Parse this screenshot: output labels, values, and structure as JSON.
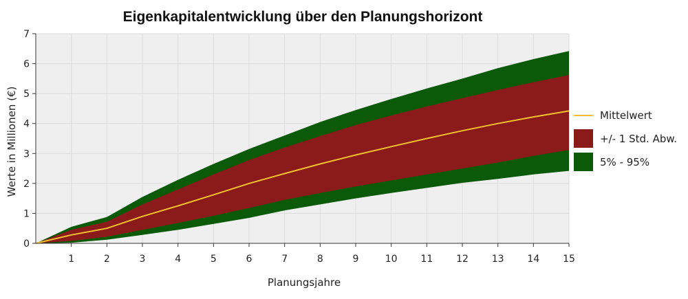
{
  "chart_data": {
    "type": "area",
    "title": "Eigenkapitalentwicklung über den Planungshorizont",
    "xlabel": "Planungsjahre",
    "ylabel": "Werte in Millionen (€)",
    "x": [
      0,
      1,
      2,
      3,
      4,
      5,
      6,
      7,
      8,
      9,
      10,
      11,
      12,
      13,
      14,
      15
    ],
    "xlim": [
      0,
      15
    ],
    "ylim": [
      0,
      7
    ],
    "x_ticks": [
      "1",
      "2",
      "3",
      "4",
      "5",
      "6",
      "7",
      "8",
      "9",
      "10",
      "11",
      "12",
      "13",
      "14",
      "15"
    ],
    "y_ticks": [
      "0",
      "1",
      "2",
      "3",
      "4",
      "5",
      "6",
      "7"
    ],
    "grid": true,
    "legend_position": "right",
    "series": [
      {
        "name": "Mittelwert",
        "kind": "line",
        "color": "#f2c12e",
        "values": [
          0,
          0.28,
          0.5,
          0.9,
          1.25,
          1.62,
          2.0,
          2.33,
          2.65,
          2.95,
          3.23,
          3.5,
          3.76,
          4.0,
          4.22,
          4.42
        ]
      },
      {
        "name": "+/- 1 Std. Abw.",
        "kind": "band",
        "color": "#8b1a1a",
        "lower": [
          0,
          0.08,
          0.22,
          0.45,
          0.68,
          0.92,
          1.18,
          1.45,
          1.68,
          1.9,
          2.1,
          2.3,
          2.5,
          2.7,
          2.92,
          3.12
        ],
        "upper": [
          0,
          0.45,
          0.72,
          1.3,
          1.8,
          2.3,
          2.78,
          3.2,
          3.58,
          3.95,
          4.27,
          4.57,
          4.85,
          5.12,
          5.38,
          5.62
        ]
      },
      {
        "name": "5% - 95%",
        "kind": "band",
        "color": "#0a5a0a",
        "lower": [
          0,
          0.02,
          0.12,
          0.28,
          0.45,
          0.65,
          0.85,
          1.1,
          1.3,
          1.5,
          1.68,
          1.85,
          2.02,
          2.15,
          2.3,
          2.42
        ],
        "upper": [
          0,
          0.55,
          0.88,
          1.55,
          2.12,
          2.65,
          3.15,
          3.6,
          4.05,
          4.45,
          4.82,
          5.17,
          5.5,
          5.85,
          6.15,
          6.42
        ]
      }
    ]
  }
}
